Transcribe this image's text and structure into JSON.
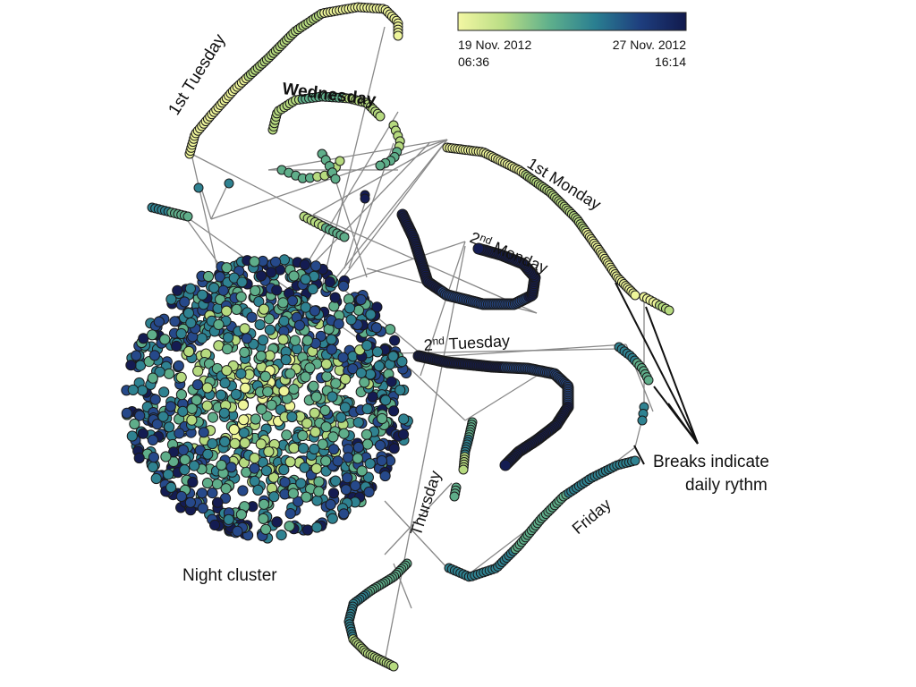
{
  "colorbar": {
    "colors": [
      "#f3f7a3",
      "#b9dd85",
      "#5fb08c",
      "#2a7f91",
      "#1e3e7e",
      "#111a4d"
    ],
    "start_date": "19 Nov. 2012",
    "start_time": "06:36",
    "end_date": "27 Nov. 2012",
    "end_time": "16:14"
  },
  "labels": {
    "tuesday1": "1st Tuesday",
    "wednesday": "Wednesday",
    "monday1": "1st Monday",
    "monday2_num": "2",
    "monday2_sup": "nd",
    "monday2_day": " Monday",
    "tuesday2_num": "2",
    "tuesday2_sup": "nd",
    "tuesday2_day": " Tuesday",
    "thursday": "Thursday",
    "friday": "Friday",
    "night_cluster": "Night cluster",
    "breaks_line1": "Breaks indicate",
    "breaks_line2": "daily rythm"
  },
  "palette": {
    "yellow": "#eef59a",
    "lightgreen": "#b6da7f",
    "green": "#5fae8a",
    "teal": "#2f8291",
    "blue": "#26498a",
    "navy": "#141c52",
    "edge": "#888888",
    "outline": "#1a1a1a"
  }
}
